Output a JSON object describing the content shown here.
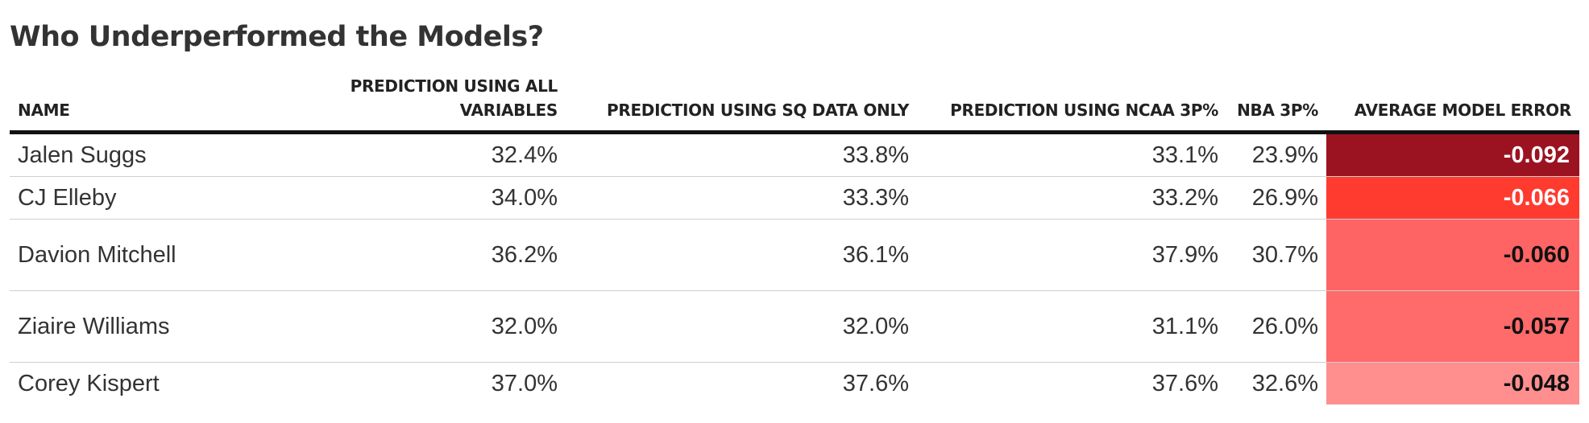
{
  "title": "Who Underperformed the Models?",
  "columns": [
    {
      "key": "name",
      "label": "NAME"
    },
    {
      "key": "all",
      "label": "PREDICTION USING ALL VARIABLES"
    },
    {
      "key": "sq",
      "label": "PREDICTION USING SQ DATA ONLY"
    },
    {
      "key": "ncaa",
      "label": "PREDICTION USING NCAA 3P%"
    },
    {
      "key": "nba",
      "label": "NBA 3P%"
    },
    {
      "key": "err",
      "label": "AVERAGE MODEL ERROR"
    }
  ],
  "rows": [
    {
      "name": "Jalen Suggs",
      "all": "32.4%",
      "sq": "33.8%",
      "ncaa": "33.1%",
      "nba": "23.9%",
      "err": "-0.092",
      "err_bg": "#9b1321",
      "err_fg": "#ffffff"
    },
    {
      "name": "CJ Elleby",
      "all": "34.0%",
      "sq": "33.3%",
      "ncaa": "33.2%",
      "nba": "26.9%",
      "err": "-0.066",
      "err_bg": "#ff3b30",
      "err_fg": "#ffffff"
    },
    {
      "name": "Davion Mitchell",
      "all": "36.2%",
      "sq": "36.1%",
      "ncaa": "37.9%",
      "nba": "30.7%",
      "err": "-0.060",
      "err_bg": "#ff6464",
      "err_fg": "#111111"
    },
    {
      "name": "Ziaire Williams",
      "all": "32.0%",
      "sq": "32.0%",
      "ncaa": "31.1%",
      "nba": "26.0%",
      "err": "-0.057",
      "err_bg": "#ff6a6a",
      "err_fg": "#111111"
    },
    {
      "name": "Corey Kispert",
      "all": "37.0%",
      "sq": "37.6%",
      "ncaa": "37.6%",
      "nba": "32.6%",
      "err": "-0.048",
      "err_bg": "#ff8f8f",
      "err_fg": "#111111"
    }
  ],
  "chart_data": {
    "type": "table",
    "title": "Who Underperformed the Models?",
    "columns": [
      "NAME",
      "PREDICTION USING ALL VARIABLES",
      "PREDICTION USING SQ DATA ONLY",
      "PREDICTION USING NCAA 3P%",
      "NBA 3P%",
      "AVERAGE MODEL ERROR"
    ],
    "rows": [
      [
        "Jalen Suggs",
        "32.4%",
        "33.8%",
        "33.1%",
        "23.9%",
        -0.092
      ],
      [
        "CJ Elleby",
        "34.0%",
        "33.3%",
        "33.2%",
        "26.9%",
        -0.066
      ],
      [
        "Davion Mitchell",
        "36.2%",
        "36.1%",
        "37.9%",
        "30.7%",
        -0.06
      ],
      [
        "Ziaire Williams",
        "32.0%",
        "32.0%",
        "31.1%",
        "26.0%",
        -0.057
      ],
      [
        "Corey Kispert",
        "37.0%",
        "37.6%",
        "37.6%",
        "32.6%",
        -0.048
      ]
    ]
  }
}
